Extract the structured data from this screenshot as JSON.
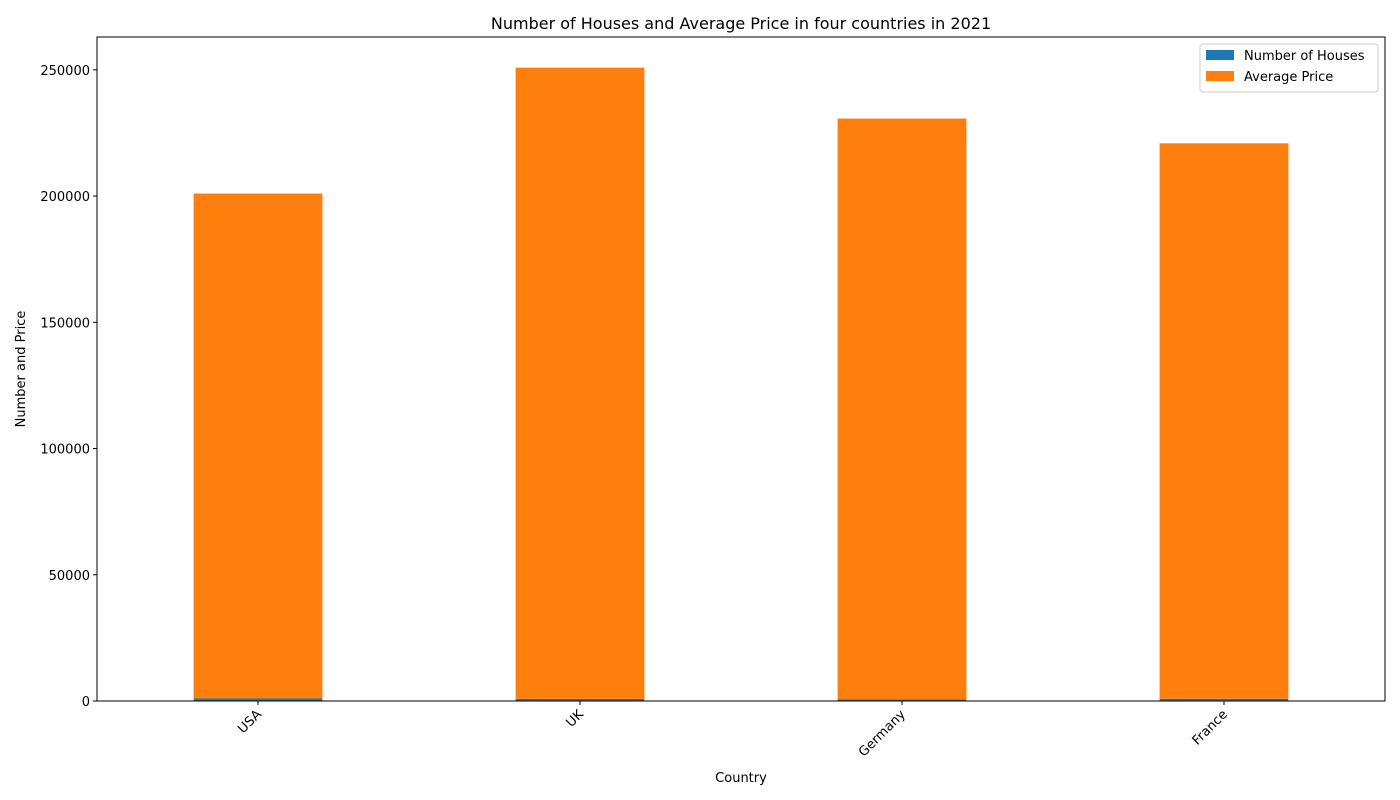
{
  "chart_data": {
    "type": "bar",
    "stacked": true,
    "title": "Number of Houses and Average Price in four countries in 2021",
    "xlabel": "Country",
    "ylabel": "Number and Price",
    "categories": [
      "USA",
      "UK",
      "Germany",
      "France"
    ],
    "series": [
      {
        "name": "Number of Houses",
        "color": "#1f77b4",
        "values": [
          1000,
          850,
          700,
          900
        ]
      },
      {
        "name": "Average Price",
        "color": "#ff7f0e",
        "values": [
          200000,
          250000,
          230000,
          220000
        ]
      }
    ],
    "ylim": [
      0,
      263000
    ],
    "yticks": [
      0,
      50000,
      100000,
      150000,
      200000,
      250000
    ],
    "legend_position": "top-right",
    "grid": false
  }
}
